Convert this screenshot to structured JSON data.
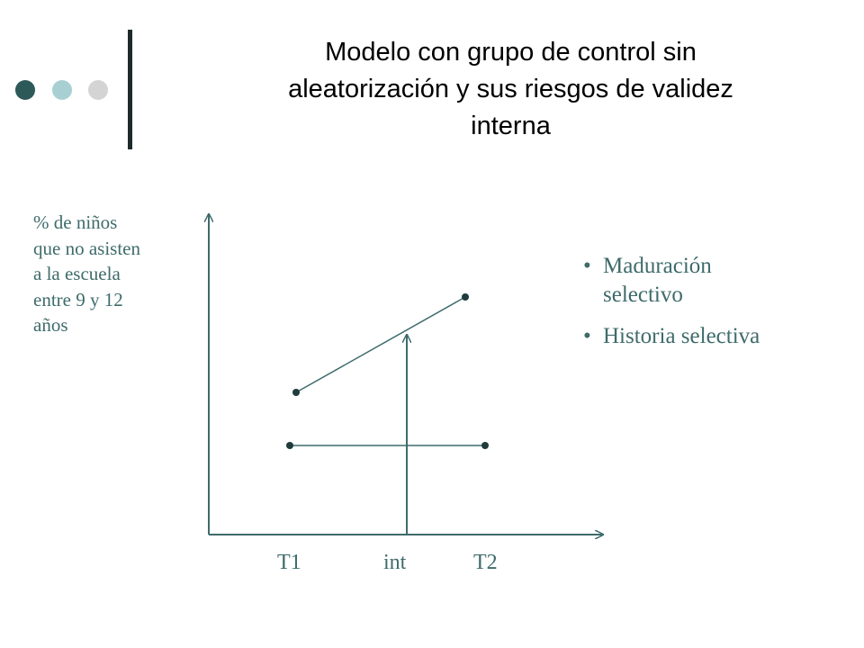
{
  "title": {
    "lines": [
      "Modelo con grupo de control sin",
      "aleatorización y sus riesgos de validez",
      "interna"
    ]
  },
  "ylabel": {
    "lines": [
      "% de niños",
      "que no asisten",
      "a la escuela",
      "entre 9 y 12",
      "años"
    ]
  },
  "xticks": {
    "t1": "T1",
    "int": "int",
    "t2": "T2"
  },
  "bullets": {
    "mark": "•",
    "items": [
      {
        "lines": [
          "Maduración",
          "selectivo"
        ]
      },
      {
        "lines": [
          "Historia selectiva"
        ]
      }
    ]
  },
  "colors": {
    "dark_teal": "#2e5959",
    "light_teal": "#a8d0d2",
    "light_gray": "#d4d4d4",
    "line_color": "#3f6b6b",
    "text_teal": "#3f6b6b"
  }
}
